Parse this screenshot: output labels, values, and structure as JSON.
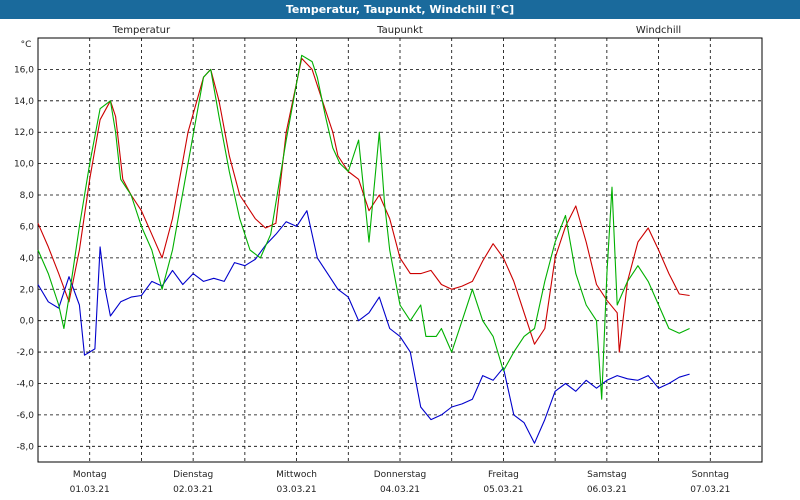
{
  "chart_data": {
    "type": "line",
    "title": "Temperatur, Taupunkt, Windchill [°C]",
    "ylabel": "°C",
    "ylim": [
      -9,
      18
    ],
    "yticks": [
      16,
      14,
      12,
      10,
      8,
      6,
      4,
      2,
      0,
      -2,
      -4,
      -6,
      -8
    ],
    "ytick_labels": [
      "16,0",
      "14,0",
      "12,0",
      "10,0",
      "8,0",
      "6,0",
      "4,0",
      "2,0",
      "0,0",
      "-2,0",
      "-4,0",
      "-6,0",
      "-8,0"
    ],
    "xlim": [
      0,
      7
    ],
    "days": [
      {
        "name": "Montag",
        "date": "01.03.21"
      },
      {
        "name": "Dienstag",
        "date": "02.03.21"
      },
      {
        "name": "Mittwoch",
        "date": "03.03.21"
      },
      {
        "name": "Donnerstag",
        "date": "04.03.21"
      },
      {
        "name": "Freitag",
        "date": "05.03.21"
      },
      {
        "name": "Samstag",
        "date": "06.03.21"
      },
      {
        "name": "Sonntag",
        "date": "07.03.21"
      }
    ],
    "series": [
      {
        "name": "Temperatur",
        "color": "#cc0000",
        "points": [
          [
            0,
            6.2
          ],
          [
            0.1,
            4.7
          ],
          [
            0.2,
            3
          ],
          [
            0.3,
            1.2
          ],
          [
            0.4,
            4.5
          ],
          [
            0.5,
            9
          ],
          [
            0.6,
            12.8
          ],
          [
            0.7,
            14
          ],
          [
            0.75,
            13
          ],
          [
            0.82,
            9
          ],
          [
            0.9,
            8
          ],
          [
            1.0,
            7
          ],
          [
            1.1,
            5.5
          ],
          [
            1.2,
            4
          ],
          [
            1.3,
            6.5
          ],
          [
            1.45,
            12
          ],
          [
            1.6,
            15.5
          ],
          [
            1.67,
            16
          ],
          [
            1.75,
            14
          ],
          [
            1.85,
            10.5
          ],
          [
            1.95,
            8
          ],
          [
            2.1,
            6.5
          ],
          [
            2.2,
            5.9
          ],
          [
            2.3,
            6.2
          ],
          [
            2.4,
            12
          ],
          [
            2.55,
            16.7
          ],
          [
            2.65,
            16
          ],
          [
            2.75,
            14
          ],
          [
            2.85,
            12
          ],
          [
            2.9,
            10.5
          ],
          [
            3.0,
            9.5
          ],
          [
            3.1,
            9
          ],
          [
            3.2,
            7
          ],
          [
            3.3,
            8
          ],
          [
            3.4,
            6.5
          ],
          [
            3.5,
            4
          ],
          [
            3.6,
            3
          ],
          [
            3.7,
            3
          ],
          [
            3.8,
            3.2
          ],
          [
            3.9,
            2.3
          ],
          [
            4.0,
            2
          ],
          [
            4.1,
            2.2
          ],
          [
            4.2,
            2.5
          ],
          [
            4.3,
            3.8
          ],
          [
            4.4,
            4.9
          ],
          [
            4.5,
            4
          ],
          [
            4.6,
            2.5
          ],
          [
            4.7,
            0.5
          ],
          [
            4.8,
            -1.5
          ],
          [
            4.9,
            -0.5
          ],
          [
            5.0,
            4
          ],
          [
            5.1,
            6
          ],
          [
            5.2,
            7.3
          ],
          [
            5.3,
            5
          ],
          [
            5.4,
            2.3
          ],
          [
            5.5,
            1.3
          ],
          [
            5.6,
            0.5
          ],
          [
            5.62,
            -2
          ],
          [
            5.7,
            2.5
          ],
          [
            5.8,
            5
          ],
          [
            5.9,
            5.9
          ],
          [
            6.0,
            4.5
          ],
          [
            6.1,
            3
          ],
          [
            6.2,
            1.7
          ],
          [
            6.3,
            1.6
          ]
        ]
      },
      {
        "name": "Taupunkt",
        "color": "#0000cc",
        "points": [
          [
            0,
            2.3
          ],
          [
            0.1,
            1.2
          ],
          [
            0.2,
            0.8
          ],
          [
            0.3,
            2.8
          ],
          [
            0.4,
            1
          ],
          [
            0.45,
            -2.2
          ],
          [
            0.55,
            -1.8
          ],
          [
            0.6,
            4.7
          ],
          [
            0.65,
            2
          ],
          [
            0.7,
            0.3
          ],
          [
            0.8,
            1.2
          ],
          [
            0.9,
            1.5
          ],
          [
            1.0,
            1.6
          ],
          [
            1.1,
            2.5
          ],
          [
            1.2,
            2.2
          ],
          [
            1.3,
            3.2
          ],
          [
            1.4,
            2.3
          ],
          [
            1.5,
            3
          ],
          [
            1.6,
            2.5
          ],
          [
            1.7,
            2.7
          ],
          [
            1.8,
            2.5
          ],
          [
            1.9,
            3.7
          ],
          [
            2.0,
            3.5
          ],
          [
            2.1,
            3.9
          ],
          [
            2.2,
            4.8
          ],
          [
            2.3,
            5.5
          ],
          [
            2.4,
            6.3
          ],
          [
            2.5,
            6
          ],
          [
            2.6,
            7
          ],
          [
            2.7,
            4
          ],
          [
            2.8,
            3
          ],
          [
            2.9,
            2
          ],
          [
            3.0,
            1.5
          ],
          [
            3.1,
            0
          ],
          [
            3.2,
            0.5
          ],
          [
            3.3,
            1.5
          ],
          [
            3.4,
            -0.5
          ],
          [
            3.5,
            -1
          ],
          [
            3.6,
            -2
          ],
          [
            3.7,
            -5.5
          ],
          [
            3.8,
            -6.3
          ],
          [
            3.9,
            -6
          ],
          [
            4.0,
            -5.5
          ],
          [
            4.1,
            -5.3
          ],
          [
            4.2,
            -5
          ],
          [
            4.3,
            -3.5
          ],
          [
            4.4,
            -3.8
          ],
          [
            4.5,
            -3
          ],
          [
            4.6,
            -6
          ],
          [
            4.7,
            -6.5
          ],
          [
            4.8,
            -7.8
          ],
          [
            4.9,
            -6.3
          ],
          [
            5.0,
            -4.5
          ],
          [
            5.1,
            -4
          ],
          [
            5.2,
            -4.5
          ],
          [
            5.3,
            -3.8
          ],
          [
            5.4,
            -4.3
          ],
          [
            5.5,
            -3.8
          ],
          [
            5.6,
            -3.5
          ],
          [
            5.7,
            -3.7
          ],
          [
            5.8,
            -3.8
          ],
          [
            5.9,
            -3.5
          ],
          [
            6.0,
            -4.3
          ],
          [
            6.1,
            -4
          ],
          [
            6.2,
            -3.6
          ],
          [
            6.3,
            -3.4
          ]
        ]
      },
      {
        "name": "Windchill",
        "color": "#00b000",
        "points": [
          [
            0,
            4.5
          ],
          [
            0.1,
            3
          ],
          [
            0.2,
            1
          ],
          [
            0.25,
            -0.5
          ],
          [
            0.3,
            1.5
          ],
          [
            0.4,
            6
          ],
          [
            0.5,
            10
          ],
          [
            0.6,
            13.5
          ],
          [
            0.7,
            14
          ],
          [
            0.75,
            12
          ],
          [
            0.8,
            9
          ],
          [
            0.9,
            8
          ],
          [
            1.0,
            6
          ],
          [
            1.1,
            4.5
          ],
          [
            1.2,
            2
          ],
          [
            1.3,
            4.5
          ],
          [
            1.45,
            10
          ],
          [
            1.6,
            15.5
          ],
          [
            1.67,
            16
          ],
          [
            1.75,
            13
          ],
          [
            1.85,
            9.5
          ],
          [
            1.95,
            6.5
          ],
          [
            2.05,
            4.5
          ],
          [
            2.15,
            4
          ],
          [
            2.25,
            5.5
          ],
          [
            2.4,
            11.5
          ],
          [
            2.55,
            16.9
          ],
          [
            2.65,
            16.5
          ],
          [
            2.7,
            15.5
          ],
          [
            2.78,
            13
          ],
          [
            2.85,
            11
          ],
          [
            2.92,
            10
          ],
          [
            3.0,
            9.5
          ],
          [
            3.1,
            11.5
          ],
          [
            3.2,
            5
          ],
          [
            3.3,
            12
          ],
          [
            3.35,
            7.5
          ],
          [
            3.4,
            4.5
          ],
          [
            3.5,
            1
          ],
          [
            3.6,
            0
          ],
          [
            3.7,
            1
          ],
          [
            3.75,
            -1
          ],
          [
            3.85,
            -1
          ],
          [
            3.9,
            -0.5
          ],
          [
            4.0,
            -2
          ],
          [
            4.1,
            0
          ],
          [
            4.2,
            2
          ],
          [
            4.3,
            0
          ],
          [
            4.4,
            -1
          ],
          [
            4.5,
            -3.2
          ],
          [
            4.6,
            -2
          ],
          [
            4.7,
            -1
          ],
          [
            4.8,
            -0.5
          ],
          [
            4.9,
            2.5
          ],
          [
            5.0,
            5
          ],
          [
            5.1,
            6.7
          ],
          [
            5.2,
            3
          ],
          [
            5.3,
            1
          ],
          [
            5.4,
            0
          ],
          [
            5.45,
            -5
          ],
          [
            5.5,
            3
          ],
          [
            5.55,
            8.5
          ],
          [
            5.6,
            1
          ],
          [
            5.7,
            2.5
          ],
          [
            5.8,
            3.5
          ],
          [
            5.9,
            2.5
          ],
          [
            6.0,
            1
          ],
          [
            6.1,
            -0.5
          ],
          [
            6.2,
            -0.8
          ],
          [
            6.3,
            -0.5
          ]
        ]
      }
    ]
  }
}
